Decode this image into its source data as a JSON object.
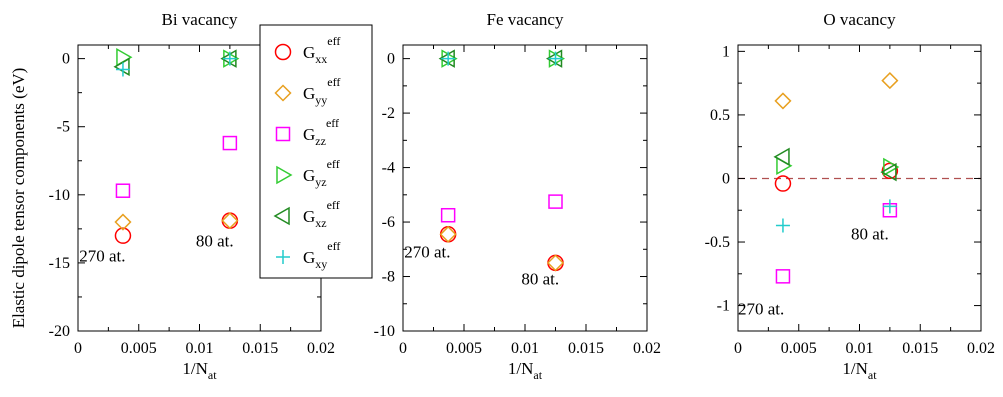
{
  "ylabel": "Elastic dipole tensor components (eV)",
  "legend": [
    {
      "key": "xx",
      "base": "G",
      "sub": "xx",
      "sup": "eff",
      "marker": "circle",
      "color": "#ff0000"
    },
    {
      "key": "yy",
      "base": "G",
      "sub": "yy",
      "sup": "eff",
      "marker": "diamond",
      "color": "#e8a020"
    },
    {
      "key": "zz",
      "base": "G",
      "sub": "zz",
      "sup": "eff",
      "marker": "square",
      "color": "#ff00ff"
    },
    {
      "key": "yz",
      "base": "G",
      "sub": "yz",
      "sup": "eff",
      "marker": "triangle-right",
      "color": "#33cc33"
    },
    {
      "key": "xz",
      "base": "G",
      "sub": "xz",
      "sup": "eff",
      "marker": "triangle-left",
      "color": "#228b22"
    },
    {
      "key": "xy",
      "base": "G",
      "sub": "xy",
      "sup": "eff",
      "marker": "plus",
      "color": "#22cccc"
    }
  ],
  "chart_data": [
    {
      "type": "scatter",
      "title": "Bi vacancy",
      "xlabel": {
        "base": "1/N",
        "sub": "at"
      },
      "xlim": [
        0,
        0.02
      ],
      "ylim": [
        -20,
        1
      ],
      "xticks": [
        0,
        0.005,
        0.01,
        0.015,
        0.02
      ],
      "xtick_labels": [
        "0",
        "0.005",
        "0.01",
        "0.015",
        "0.02"
      ],
      "yticks": [
        -20,
        -15,
        -10,
        -5,
        0
      ],
      "ytick_labels": [
        "-20",
        "-15",
        "-10",
        "-5",
        "0"
      ],
      "x": [
        0.0037,
        0.0125
      ],
      "series": [
        {
          "key": "xx",
          "values": [
            -13.0,
            -11.9
          ]
        },
        {
          "key": "yy",
          "values": [
            -12.0,
            -11.9
          ]
        },
        {
          "key": "zz",
          "values": [
            -9.7,
            -6.2
          ]
        },
        {
          "key": "yz",
          "values": [
            0.1,
            0.0
          ]
        },
        {
          "key": "xz",
          "values": [
            -0.6,
            0.0
          ]
        },
        {
          "key": "xy",
          "values": [
            -0.8,
            0.0
          ]
        }
      ],
      "annotations": [
        {
          "text": "270 at.",
          "x": 0.0001,
          "y": -14.9
        },
        {
          "text": "80 at.",
          "x": 0.0097,
          "y": -13.8
        }
      ]
    },
    {
      "type": "scatter",
      "title": "Fe vacancy",
      "xlabel": {
        "base": "1/N",
        "sub": "at"
      },
      "xlim": [
        0,
        0.02
      ],
      "ylim": [
        -10,
        0.5
      ],
      "xticks": [
        0,
        0.005,
        0.01,
        0.015,
        0.02
      ],
      "xtick_labels": [
        "0",
        "0.005",
        "0.01",
        "0.015",
        "0.02"
      ],
      "yticks": [
        -10,
        -8,
        -6,
        -4,
        -2,
        0
      ],
      "ytick_labels": [
        "-10",
        "-8",
        "-6",
        "-4",
        "-2",
        "0"
      ],
      "x": [
        0.0037,
        0.0125
      ],
      "series": [
        {
          "key": "xx",
          "values": [
            -6.45,
            -7.5
          ]
        },
        {
          "key": "yy",
          "values": [
            -6.45,
            -7.5
          ]
        },
        {
          "key": "zz",
          "values": [
            -5.75,
            -5.25
          ]
        },
        {
          "key": "yz",
          "values": [
            0.0,
            0.0
          ]
        },
        {
          "key": "xz",
          "values": [
            0.0,
            0.0
          ]
        },
        {
          "key": "xy",
          "values": [
            0.0,
            0.0
          ]
        }
      ],
      "annotations": [
        {
          "text": "270 at.",
          "x": 0.0001,
          "y": -7.3
        },
        {
          "text": "80 at.",
          "x": 0.0097,
          "y": -8.3
        }
      ]
    },
    {
      "type": "scatter",
      "title": "O vacancy",
      "xlabel": {
        "base": "1/N",
        "sub": "at"
      },
      "xlim": [
        0,
        0.02
      ],
      "ylim": [
        -1.2,
        1.05
      ],
      "xticks": [
        0,
        0.005,
        0.01,
        0.015,
        0.02
      ],
      "xtick_labels": [
        "0",
        "0.005",
        "0.01",
        "0.015",
        "0.02"
      ],
      "yticks": [
        -1,
        -0.5,
        0,
        0.5,
        1
      ],
      "ytick_labels": [
        "-1",
        "-0.5",
        "0",
        "0.5",
        "1"
      ],
      "reference_line": {
        "y": 0,
        "color": "#b05050",
        "style": "dashed"
      },
      "x": [
        0.0037,
        0.0125
      ],
      "series": [
        {
          "key": "xx",
          "values": [
            -0.04,
            0.06
          ]
        },
        {
          "key": "yy",
          "values": [
            0.61,
            0.77
          ]
        },
        {
          "key": "zz",
          "values": [
            -0.77,
            -0.25
          ]
        },
        {
          "key": "yz",
          "values": [
            0.1,
            0.09
          ]
        },
        {
          "key": "xz",
          "values": [
            0.17,
            0.05
          ]
        },
        {
          "key": "xy",
          "values": [
            -0.37,
            -0.22
          ]
        }
      ],
      "annotations": [
        {
          "text": "80 at.",
          "x": 0.0093,
          "y": -0.48
        },
        {
          "text": "270 at.",
          "x": 0.0,
          "y": -1.07
        }
      ]
    }
  ]
}
